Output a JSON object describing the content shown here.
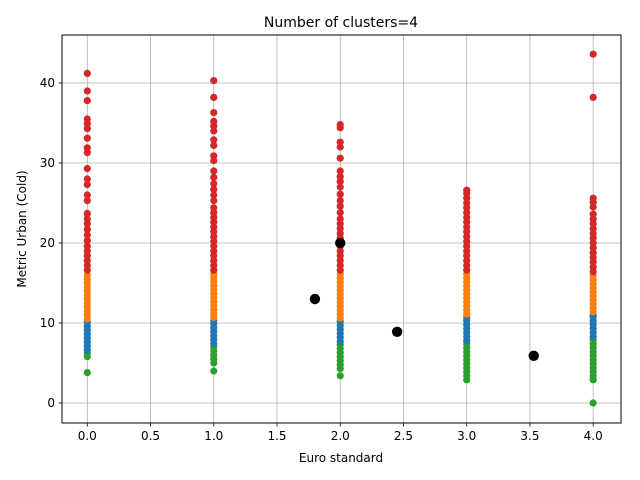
{
  "chart_data": {
    "type": "scatter",
    "title": "Number of clusters=4",
    "xlabel": "Euro standard",
    "ylabel": "Metric Urban (Cold)",
    "xlim": [
      -0.2,
      4.22
    ],
    "ylim": [
      -2.5,
      46.0
    ],
    "xticks": [
      0.0,
      0.5,
      1.0,
      1.5,
      2.0,
      2.5,
      3.0,
      3.5,
      4.0
    ],
    "xtick_labels": [
      "0.0",
      "0.5",
      "1.0",
      "1.5",
      "2.0",
      "2.5",
      "3.0",
      "3.5",
      "4.0"
    ],
    "yticks": [
      0,
      10,
      20,
      30,
      40
    ],
    "ytick_labels": [
      "0",
      "10",
      "20",
      "30",
      "40"
    ],
    "grid": true,
    "legend": "none",
    "series": [
      {
        "color": "#2ca02c",
        "points": [
          {
            "x": 0,
            "y": 3.8
          },
          {
            "x": 0,
            "y": 5.8
          },
          {
            "x": 0,
            "y": 6.2
          },
          {
            "x": 1,
            "y": 4.0
          },
          {
            "x": 1,
            "y": 5.0
          },
          {
            "x": 1,
            "y": 5.5
          },
          {
            "x": 1,
            "y": 6.0
          },
          {
            "x": 1,
            "y": 6.5
          },
          {
            "x": 1,
            "y": 7.0
          },
          {
            "x": 2,
            "y": 3.4
          },
          {
            "x": 2,
            "y": 4.3
          },
          {
            "x": 2,
            "y": 4.8
          },
          {
            "x": 2,
            "y": 5.3
          },
          {
            "x": 2,
            "y": 5.8
          },
          {
            "x": 2,
            "y": 6.3
          },
          {
            "x": 2,
            "y": 6.8
          },
          {
            "x": 2,
            "y": 7.3
          },
          {
            "x": 3,
            "y": 2.9
          },
          {
            "x": 3,
            "y": 3.4
          },
          {
            "x": 3,
            "y": 3.9
          },
          {
            "x": 3,
            "y": 4.4
          },
          {
            "x": 3,
            "y": 4.9
          },
          {
            "x": 3,
            "y": 5.4
          },
          {
            "x": 3,
            "y": 5.9
          },
          {
            "x": 3,
            "y": 6.4
          },
          {
            "x": 3,
            "y": 6.9
          },
          {
            "x": 3,
            "y": 7.4
          },
          {
            "x": 4,
            "y": 0.0
          },
          {
            "x": 4,
            "y": 2.9
          },
          {
            "x": 4,
            "y": 3.4
          },
          {
            "x": 4,
            "y": 3.9
          },
          {
            "x": 4,
            "y": 4.4
          },
          {
            "x": 4,
            "y": 4.9
          },
          {
            "x": 4,
            "y": 5.4
          },
          {
            "x": 4,
            "y": 5.9
          },
          {
            "x": 4,
            "y": 6.4
          },
          {
            "x": 4,
            "y": 6.9
          },
          {
            "x": 4,
            "y": 7.4
          },
          {
            "x": 4,
            "y": 7.9
          }
        ]
      },
      {
        "color": "#1f77b4",
        "points": [
          {
            "x": 0,
            "y": 6.6
          },
          {
            "x": 0,
            "y": 7.1
          },
          {
            "x": 0,
            "y": 7.6
          },
          {
            "x": 0,
            "y": 8.1
          },
          {
            "x": 0,
            "y": 8.6
          },
          {
            "x": 0,
            "y": 9.1
          },
          {
            "x": 0,
            "y": 9.6
          },
          {
            "x": 0,
            "y": 10.1
          },
          {
            "x": 1,
            "y": 7.4
          },
          {
            "x": 1,
            "y": 7.9
          },
          {
            "x": 1,
            "y": 8.4
          },
          {
            "x": 1,
            "y": 8.9
          },
          {
            "x": 1,
            "y": 9.4
          },
          {
            "x": 1,
            "y": 9.9
          },
          {
            "x": 1,
            "y": 10.3
          },
          {
            "x": 2,
            "y": 7.7
          },
          {
            "x": 2,
            "y": 8.2
          },
          {
            "x": 2,
            "y": 8.7
          },
          {
            "x": 2,
            "y": 9.2
          },
          {
            "x": 2,
            "y": 9.7
          },
          {
            "x": 2,
            "y": 10.2
          },
          {
            "x": 3,
            "y": 7.8
          },
          {
            "x": 3,
            "y": 8.3
          },
          {
            "x": 3,
            "y": 8.8
          },
          {
            "x": 3,
            "y": 9.3
          },
          {
            "x": 3,
            "y": 9.8
          },
          {
            "x": 3,
            "y": 10.3
          },
          {
            "x": 3,
            "y": 10.7
          },
          {
            "x": 4,
            "y": 8.3
          },
          {
            "x": 4,
            "y": 8.8
          },
          {
            "x": 4,
            "y": 9.3
          },
          {
            "x": 4,
            "y": 9.8
          },
          {
            "x": 4,
            "y": 10.3
          },
          {
            "x": 4,
            "y": 10.8
          },
          {
            "x": 4,
            "y": 11.0
          }
        ]
      },
      {
        "color": "#ff7f0e",
        "points": [
          {
            "x": 0,
            "y": 10.5
          },
          {
            "x": 0,
            "y": 11.0
          },
          {
            "x": 0,
            "y": 11.5
          },
          {
            "x": 0,
            "y": 12.0
          },
          {
            "x": 0,
            "y": 12.5
          },
          {
            "x": 0,
            "y": 13.0
          },
          {
            "x": 0,
            "y": 13.5
          },
          {
            "x": 0,
            "y": 14.0
          },
          {
            "x": 0,
            "y": 14.5
          },
          {
            "x": 0,
            "y": 15.0
          },
          {
            "x": 0,
            "y": 15.5
          },
          {
            "x": 0,
            "y": 16.0
          },
          {
            "x": 1,
            "y": 10.7
          },
          {
            "x": 1,
            "y": 11.2
          },
          {
            "x": 1,
            "y": 11.7
          },
          {
            "x": 1,
            "y": 12.2
          },
          {
            "x": 1,
            "y": 12.7
          },
          {
            "x": 1,
            "y": 13.2
          },
          {
            "x": 1,
            "y": 13.7
          },
          {
            "x": 1,
            "y": 14.2
          },
          {
            "x": 1,
            "y": 14.7
          },
          {
            "x": 1,
            "y": 15.2
          },
          {
            "x": 1,
            "y": 15.7
          },
          {
            "x": 1,
            "y": 16.1
          },
          {
            "x": 2,
            "y": 10.6
          },
          {
            "x": 2,
            "y": 11.1
          },
          {
            "x": 2,
            "y": 11.6
          },
          {
            "x": 2,
            "y": 12.1
          },
          {
            "x": 2,
            "y": 12.6
          },
          {
            "x": 2,
            "y": 13.1
          },
          {
            "x": 2,
            "y": 13.6
          },
          {
            "x": 2,
            "y": 14.1
          },
          {
            "x": 2,
            "y": 14.6
          },
          {
            "x": 2,
            "y": 15.1
          },
          {
            "x": 2,
            "y": 15.6
          },
          {
            "x": 2,
            "y": 16.1
          },
          {
            "x": 3,
            "y": 11.1
          },
          {
            "x": 3,
            "y": 11.6
          },
          {
            "x": 3,
            "y": 12.1
          },
          {
            "x": 3,
            "y": 12.6
          },
          {
            "x": 3,
            "y": 13.1
          },
          {
            "x": 3,
            "y": 13.6
          },
          {
            "x": 3,
            "y": 14.1
          },
          {
            "x": 3,
            "y": 14.6
          },
          {
            "x": 3,
            "y": 15.1
          },
          {
            "x": 3,
            "y": 15.6
          },
          {
            "x": 3,
            "y": 16.1
          },
          {
            "x": 4,
            "y": 11.4
          },
          {
            "x": 4,
            "y": 11.9
          },
          {
            "x": 4,
            "y": 12.4
          },
          {
            "x": 4,
            "y": 12.9
          },
          {
            "x": 4,
            "y": 13.4
          },
          {
            "x": 4,
            "y": 13.9
          },
          {
            "x": 4,
            "y": 14.4
          },
          {
            "x": 4,
            "y": 14.9
          },
          {
            "x": 4,
            "y": 15.4
          },
          {
            "x": 4,
            "y": 15.9
          }
        ]
      },
      {
        "color": "#d62728",
        "points": [
          {
            "x": 0,
            "y": 16.6
          },
          {
            "x": 0,
            "y": 17.2
          },
          {
            "x": 0,
            "y": 17.8
          },
          {
            "x": 0,
            "y": 18.4
          },
          {
            "x": 0,
            "y": 19.0
          },
          {
            "x": 0,
            "y": 19.6
          },
          {
            "x": 0,
            "y": 20.3
          },
          {
            "x": 0,
            "y": 21.0
          },
          {
            "x": 0,
            "y": 21.7
          },
          {
            "x": 0,
            "y": 22.4
          },
          {
            "x": 0,
            "y": 23.0
          },
          {
            "x": 0,
            "y": 23.7
          },
          {
            "x": 0,
            "y": 25.3
          },
          {
            "x": 0,
            "y": 26.0
          },
          {
            "x": 0,
            "y": 27.3
          },
          {
            "x": 0,
            "y": 28.0
          },
          {
            "x": 0,
            "y": 29.3
          },
          {
            "x": 0,
            "y": 31.3
          },
          {
            "x": 0,
            "y": 31.9
          },
          {
            "x": 0,
            "y": 33.1
          },
          {
            "x": 0,
            "y": 34.3
          },
          {
            "x": 0,
            "y": 34.9
          },
          {
            "x": 0,
            "y": 35.5
          },
          {
            "x": 0,
            "y": 37.8
          },
          {
            "x": 0,
            "y": 39.0
          },
          {
            "x": 0,
            "y": 41.2
          },
          {
            "x": 1,
            "y": 16.6
          },
          {
            "x": 1,
            "y": 17.2
          },
          {
            "x": 1,
            "y": 17.8
          },
          {
            "x": 1,
            "y": 18.4
          },
          {
            "x": 1,
            "y": 19.0
          },
          {
            "x": 1,
            "y": 19.6
          },
          {
            "x": 1,
            "y": 20.2
          },
          {
            "x": 1,
            "y": 20.8
          },
          {
            "x": 1,
            "y": 21.4
          },
          {
            "x": 1,
            "y": 22.0
          },
          {
            "x": 1,
            "y": 22.6
          },
          {
            "x": 1,
            "y": 23.2
          },
          {
            "x": 1,
            "y": 23.8
          },
          {
            "x": 1,
            "y": 24.4
          },
          {
            "x": 1,
            "y": 25.3
          },
          {
            "x": 1,
            "y": 26.0
          },
          {
            "x": 1,
            "y": 26.7
          },
          {
            "x": 1,
            "y": 27.4
          },
          {
            "x": 1,
            "y": 28.2
          },
          {
            "x": 1,
            "y": 29.0
          },
          {
            "x": 1,
            "y": 30.3
          },
          {
            "x": 1,
            "y": 30.9
          },
          {
            "x": 1,
            "y": 32.2
          },
          {
            "x": 1,
            "y": 32.9
          },
          {
            "x": 1,
            "y": 34.0
          },
          {
            "x": 1,
            "y": 34.6
          },
          {
            "x": 1,
            "y": 35.2
          },
          {
            "x": 1,
            "y": 36.3
          },
          {
            "x": 1,
            "y": 38.2
          },
          {
            "x": 1,
            "y": 40.3
          },
          {
            "x": 2,
            "y": 16.6
          },
          {
            "x": 2,
            "y": 17.2
          },
          {
            "x": 2,
            "y": 17.8
          },
          {
            "x": 2,
            "y": 18.4
          },
          {
            "x": 2,
            "y": 19.0
          },
          {
            "x": 2,
            "y": 19.6
          },
          {
            "x": 2,
            "y": 20.6
          },
          {
            "x": 2,
            "y": 21.2
          },
          {
            "x": 2,
            "y": 21.8
          },
          {
            "x": 2,
            "y": 22.4
          },
          {
            "x": 2,
            "y": 23.0
          },
          {
            "x": 2,
            "y": 23.8
          },
          {
            "x": 2,
            "y": 24.6
          },
          {
            "x": 2,
            "y": 25.3
          },
          {
            "x": 2,
            "y": 26.1
          },
          {
            "x": 2,
            "y": 27.0
          },
          {
            "x": 2,
            "y": 27.7
          },
          {
            "x": 2,
            "y": 28.3
          },
          {
            "x": 2,
            "y": 29.0
          },
          {
            "x": 2,
            "y": 30.6
          },
          {
            "x": 2,
            "y": 32.0
          },
          {
            "x": 2,
            "y": 32.6
          },
          {
            "x": 2,
            "y": 34.4
          },
          {
            "x": 2,
            "y": 34.8
          },
          {
            "x": 3,
            "y": 16.6
          },
          {
            "x": 3,
            "y": 17.2
          },
          {
            "x": 3,
            "y": 17.8
          },
          {
            "x": 3,
            "y": 18.4
          },
          {
            "x": 3,
            "y": 19.0
          },
          {
            "x": 3,
            "y": 19.6
          },
          {
            "x": 3,
            "y": 20.2
          },
          {
            "x": 3,
            "y": 20.8
          },
          {
            "x": 3,
            "y": 21.4
          },
          {
            "x": 3,
            "y": 22.0
          },
          {
            "x": 3,
            "y": 22.6
          },
          {
            "x": 3,
            "y": 23.2
          },
          {
            "x": 3,
            "y": 23.8
          },
          {
            "x": 3,
            "y": 24.4
          },
          {
            "x": 3,
            "y": 25.0
          },
          {
            "x": 3,
            "y": 25.6
          },
          {
            "x": 3,
            "y": 26.2
          },
          {
            "x": 3,
            "y": 26.6
          },
          {
            "x": 4,
            "y": 16.4
          },
          {
            "x": 4,
            "y": 17.0
          },
          {
            "x": 4,
            "y": 17.6
          },
          {
            "x": 4,
            "y": 18.2
          },
          {
            "x": 4,
            "y": 18.8
          },
          {
            "x": 4,
            "y": 19.4
          },
          {
            "x": 4,
            "y": 20.0
          },
          {
            "x": 4,
            "y": 20.6
          },
          {
            "x": 4,
            "y": 21.2
          },
          {
            "x": 4,
            "y": 21.8
          },
          {
            "x": 4,
            "y": 22.4
          },
          {
            "x": 4,
            "y": 23.0
          },
          {
            "x": 4,
            "y": 23.6
          },
          {
            "x": 4,
            "y": 24.5
          },
          {
            "x": 4,
            "y": 25.1
          },
          {
            "x": 4,
            "y": 25.6
          },
          {
            "x": 4,
            "y": 38.2
          },
          {
            "x": 4,
            "y": 43.6
          }
        ]
      }
    ],
    "centroids": {
      "color": "#000000",
      "points": [
        {
          "x": 1.8,
          "y": 13.0
        },
        {
          "x": 2.0,
          "y": 20.0
        },
        {
          "x": 2.45,
          "y": 8.9
        },
        {
          "x": 3.53,
          "y": 5.9
        }
      ]
    }
  }
}
